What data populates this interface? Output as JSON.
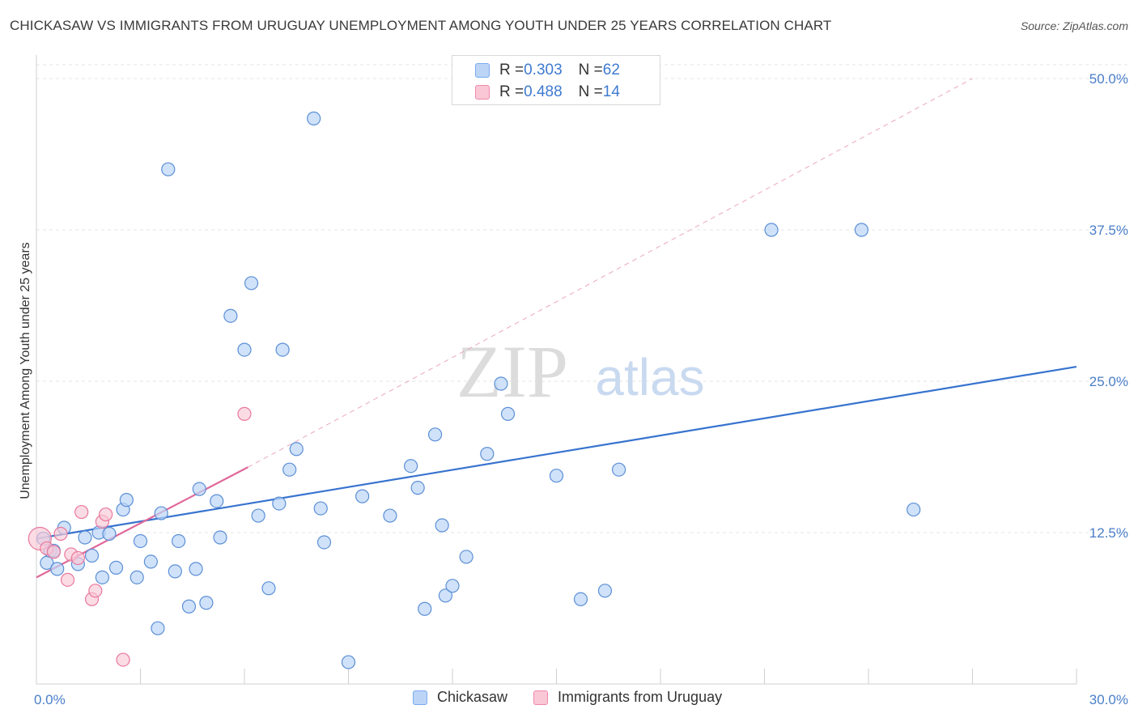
{
  "title": "CHICKASAW VS IMMIGRANTS FROM URUGUAY UNEMPLOYMENT AMONG YOUTH UNDER 25 YEARS CORRELATION CHART",
  "source": "Source: ZipAtlas.com",
  "watermark": {
    "zip": "ZIP",
    "atlas": "atlas"
  },
  "legend_top": [
    {
      "r_label": "R = ",
      "r_value": "0.303",
      "n_label": "N = ",
      "n_value": "62",
      "color": "#7aaaf0",
      "fill": "#bcd5f7"
    },
    {
      "r_label": "R = ",
      "r_value": "0.488",
      "n_label": "N = ",
      "n_value": "14",
      "color": "#f08aab",
      "fill": "#f9c7d6"
    }
  ],
  "legend_bottom": [
    {
      "label": "Chickasaw",
      "color": "#7aaaf0",
      "fill": "#bcd5f7"
    },
    {
      "label": "Immigrants from Uruguay",
      "color": "#f08aab",
      "fill": "#f9c7d6"
    }
  ],
  "chart_data": {
    "type": "scatter",
    "title": "CHICKASAW VS IMMIGRANTS FROM URUGUAY UNEMPLOYMENT AMONG YOUTH UNDER 25 YEARS CORRELATION CHART",
    "xlabel": "",
    "ylabel": "Unemployment Among Youth under 25 years",
    "xlim": [
      0,
      30
    ],
    "ylim": [
      0,
      50
    ],
    "x_tick_labels": [
      "0.0%",
      "30.0%"
    ],
    "y_ticks": [
      12.5,
      25,
      37.5,
      50
    ],
    "y_tick_labels": [
      "12.5%",
      "25.0%",
      "37.5%",
      "50.0%"
    ],
    "grid": true,
    "legend_position": "top-center",
    "series": [
      {
        "name": "Chickasaw",
        "color": "#5b8fd6",
        "fill": "#bcd5f7",
        "points": [
          [
            0.2,
            12.0
          ],
          [
            0.3,
            10.0
          ],
          [
            0.4,
            11.0
          ],
          [
            0.5,
            11.0
          ],
          [
            0.6,
            9.5
          ],
          [
            0.8,
            12.9
          ],
          [
            1.2,
            9.9
          ],
          [
            1.4,
            12.1
          ],
          [
            1.6,
            10.6
          ],
          [
            1.8,
            12.5
          ],
          [
            1.9,
            8.8
          ],
          [
            2.1,
            12.4
          ],
          [
            2.3,
            9.6
          ],
          [
            2.5,
            14.4
          ],
          [
            2.6,
            15.2
          ],
          [
            2.9,
            8.8
          ],
          [
            3.0,
            11.8
          ],
          [
            3.3,
            10.1
          ],
          [
            3.5,
            4.6
          ],
          [
            3.6,
            14.1
          ],
          [
            3.8,
            42.5
          ],
          [
            4.0,
            9.3
          ],
          [
            4.1,
            11.8
          ],
          [
            4.4,
            6.4
          ],
          [
            4.6,
            9.5
          ],
          [
            4.7,
            16.1
          ],
          [
            4.9,
            6.7
          ],
          [
            5.2,
            15.1
          ],
          [
            5.3,
            12.1
          ],
          [
            5.6,
            30.4
          ],
          [
            6.0,
            27.6
          ],
          [
            6.2,
            33.1
          ],
          [
            6.4,
            13.9
          ],
          [
            6.7,
            7.9
          ],
          [
            7.0,
            14.9
          ],
          [
            7.1,
            27.6
          ],
          [
            7.3,
            17.7
          ],
          [
            7.5,
            19.4
          ],
          [
            8.0,
            46.7
          ],
          [
            8.2,
            14.5
          ],
          [
            8.3,
            11.7
          ],
          [
            9.0,
            1.8
          ],
          [
            9.4,
            15.5
          ],
          [
            10.2,
            13.9
          ],
          [
            10.8,
            18.0
          ],
          [
            11.0,
            16.2
          ],
          [
            11.2,
            6.2
          ],
          [
            11.5,
            20.6
          ],
          [
            11.7,
            13.1
          ],
          [
            11.8,
            7.3
          ],
          [
            12.0,
            8.1
          ],
          [
            12.4,
            10.5
          ],
          [
            13.0,
            19.0
          ],
          [
            13.4,
            24.8
          ],
          [
            13.6,
            22.3
          ],
          [
            15.0,
            17.2
          ],
          [
            15.7,
            7.0
          ],
          [
            16.4,
            7.7
          ],
          [
            16.8,
            17.7
          ],
          [
            21.2,
            37.5
          ],
          [
            23.8,
            37.5
          ],
          [
            25.3,
            14.4
          ]
        ],
        "trend": {
          "x": [
            0,
            30
          ],
          "y": [
            12.0,
            26.2
          ]
        }
      },
      {
        "name": "Immigrants from Uruguay",
        "color": "#e8789e",
        "fill": "#f9c7d6",
        "points": [
          [
            0.1,
            12.0
          ],
          [
            0.3,
            11.2
          ],
          [
            0.5,
            10.9
          ],
          [
            0.7,
            12.4
          ],
          [
            0.9,
            8.6
          ],
          [
            1.0,
            10.7
          ],
          [
            1.2,
            10.4
          ],
          [
            1.3,
            14.2
          ],
          [
            1.6,
            7.0
          ],
          [
            1.7,
            7.7
          ],
          [
            1.9,
            13.4
          ],
          [
            2.0,
            14.0
          ],
          [
            2.5,
            2.0
          ],
          [
            6.0,
            22.3
          ]
        ],
        "trend": {
          "x": [
            0,
            6.1
          ],
          "y": [
            8.8,
            17.9
          ]
        },
        "trend_extended": {
          "x": [
            6.1,
            27.0
          ],
          "y": [
            17.9,
            50.0
          ]
        }
      }
    ]
  }
}
